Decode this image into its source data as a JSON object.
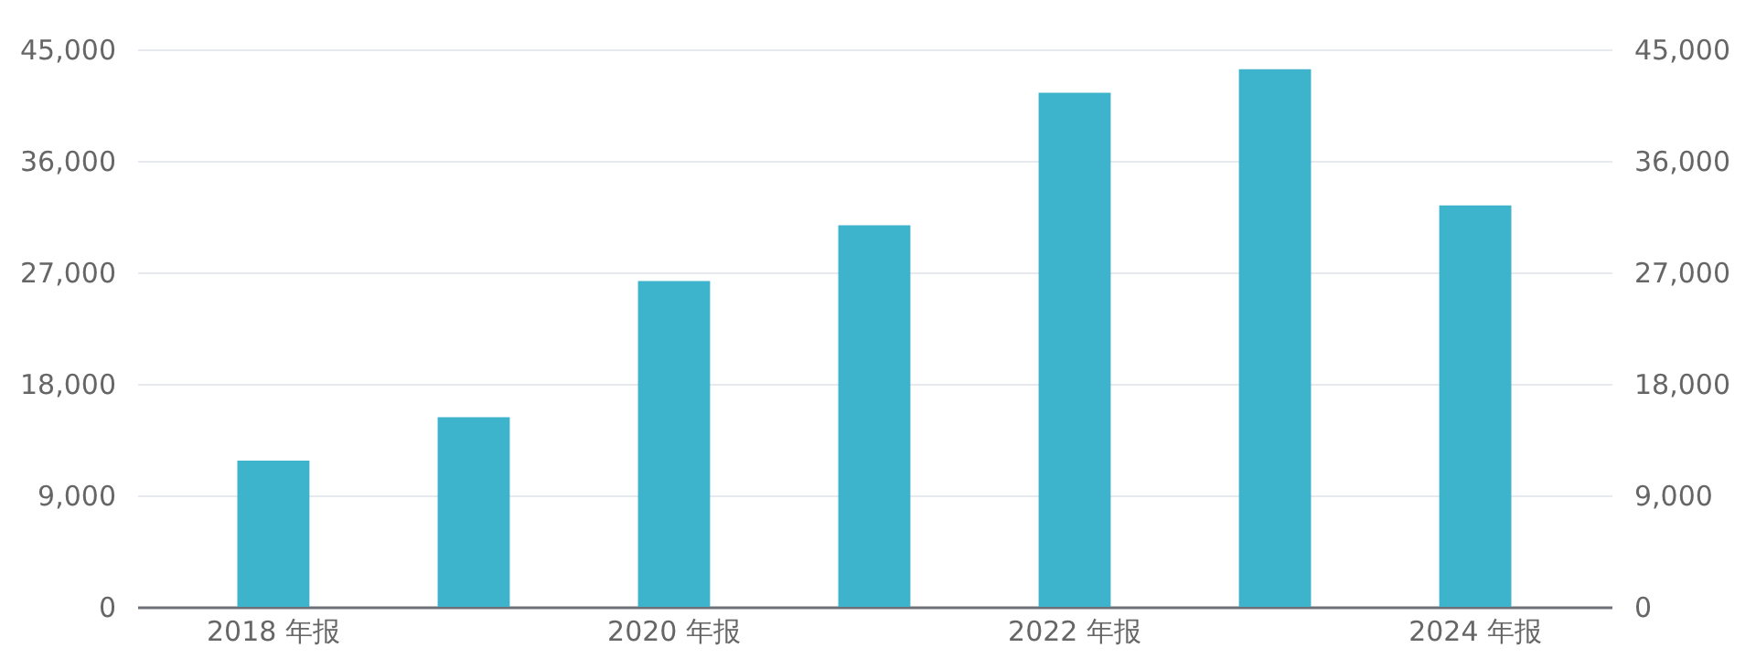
{
  "chart_data": {
    "type": "bar",
    "categories": [
      "2018 年报",
      null,
      "2020 年报",
      null,
      "2022 年报",
      null,
      "2024 年报"
    ],
    "values": [
      11800,
      15300,
      26300,
      30800,
      41500,
      43400,
      32400
    ],
    "color": "#3db3cc",
    "ylim": [
      0,
      45000
    ],
    "yticks": [
      {
        "value": 0,
        "label": "0"
      },
      {
        "value": 9000,
        "label": "9,000"
      },
      {
        "value": 18000,
        "label": "18,000"
      },
      {
        "value": 27000,
        "label": "27,000"
      },
      {
        "value": 36000,
        "label": "36,000"
      },
      {
        "value": 45000,
        "label": "45,000"
      }
    ],
    "y2lim": [
      0,
      45000
    ],
    "y2ticks": [
      {
        "value": 0,
        "label": "0"
      },
      {
        "value": 9000,
        "label": "9,000"
      },
      {
        "value": 18000,
        "label": "18,000"
      },
      {
        "value": 27000,
        "label": "27,000"
      },
      {
        "value": 36000,
        "label": "36,000"
      },
      {
        "value": 45000,
        "label": "45,000"
      }
    ],
    "grid": "y"
  }
}
